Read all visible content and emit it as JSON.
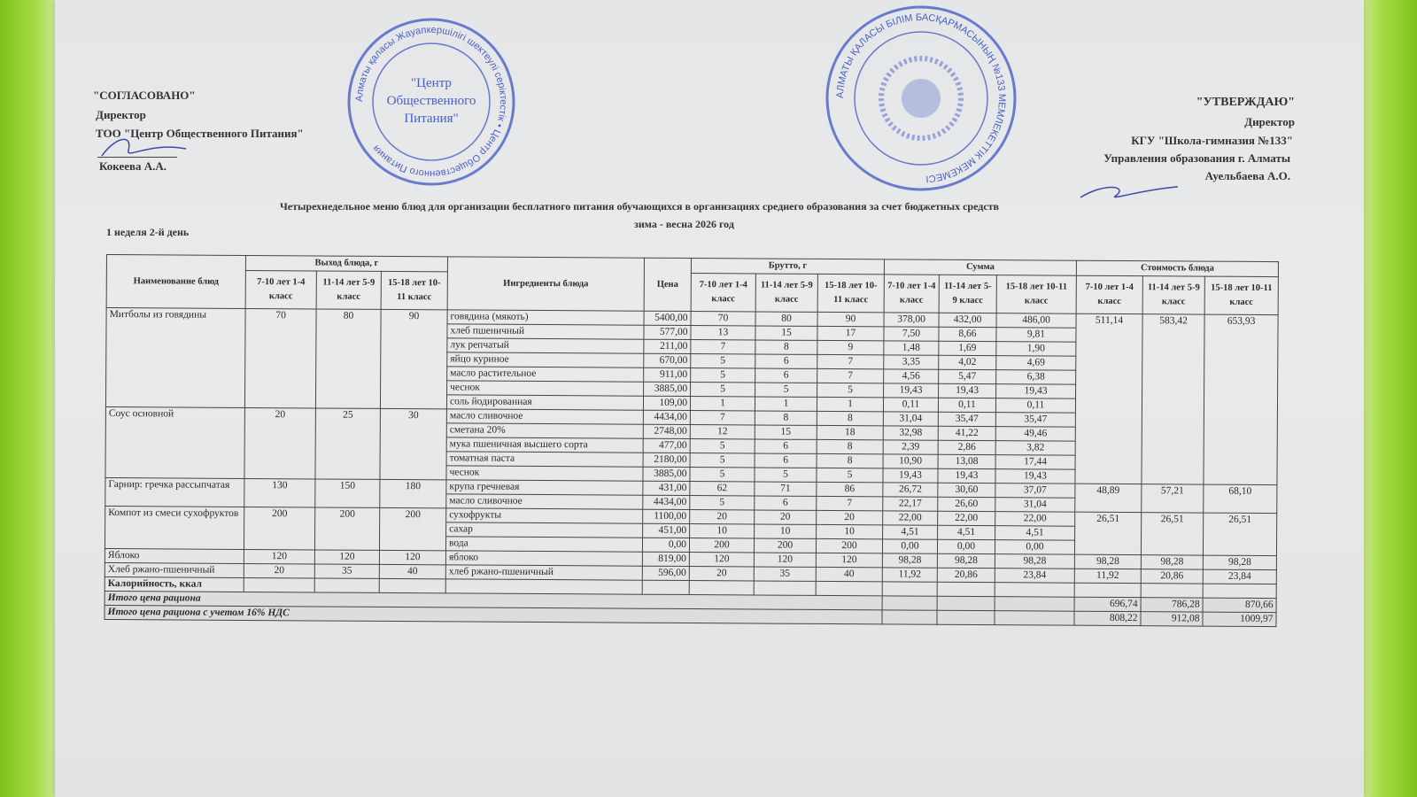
{
  "approval_left": {
    "title": "\"СОГЛАСОВАНО\"",
    "position": "Директор",
    "org": "ТОО \"Центр Общественного Питания\"",
    "name": "Кокеева А.А.",
    "stamp_text": "Алматы қаласы Жауапкершілігі шектеулі серіктестік • Центр Общественного Питания",
    "stamp_center": [
      "\"Центр",
      "Общественного",
      "Питания\""
    ]
  },
  "approval_right": {
    "title": "\"УТВЕРЖДАЮ\"",
    "position": "Директор",
    "org": "КГУ \"Школа-гимназия №133\"",
    "dept": "Управления образования г. Алматы",
    "name": "Ауельбаева А.О.",
    "stamp_text": "АЛМАТЫ ҚАЛАСЫ БІЛІМ БАСҚАРМАСЫНЫҢ №133 МЕМЛЕКЕТТІК МЕКЕМЕСІ"
  },
  "document": {
    "title": "Четырехнедельное меню блюд для организации бесплатного питания обучающихся в организациях среднего образования за счет бюджетных средств",
    "season": "зима - весна 2026 год",
    "day": "1 неделя 2-й день"
  },
  "colors": {
    "stamp": "#4a5fc4",
    "paper": "#e6e7e8",
    "frame": "#8fcf2a"
  },
  "table": {
    "headers": {
      "dish": "Наименование блюд",
      "yield": "Выход блюда, г",
      "ingredients": "Ингредиенты блюда",
      "price": "Цена",
      "brutto": "Брутто, г",
      "sum": "Сумма",
      "cost": "Стоимость блюда",
      "yield_groups": [
        "7-10 лет 1-4 класс",
        "11-14 лет 5-9 класс",
        "15-18 лет 10-11 класс"
      ],
      "groups": [
        "7-10 лет 1-4 класс",
        "11-14 лет 5-9 класс",
        "15-18 лет 10-11 класс"
      ]
    },
    "dishes": [
      {
        "name": "Митболы из говядины",
        "yield": [
          "70",
          "80",
          "90"
        ],
        "cost": [
          "511,14",
          "583,42",
          "653,93"
        ],
        "ingredients": [
          {
            "name": "говядина (мякоть)",
            "price": "5400,00",
            "brutto": [
              "70",
              "80",
              "90"
            ],
            "sum": [
              "378,00",
              "432,00",
              "486,00"
            ]
          },
          {
            "name": "хлеб пшеничный",
            "price": "577,00",
            "brutto": [
              "13",
              "15",
              "17"
            ],
            "sum": [
              "7,50",
              "8,66",
              "9,81"
            ]
          },
          {
            "name": "лук репчатый",
            "price": "211,00",
            "brutto": [
              "7",
              "8",
              "9"
            ],
            "sum": [
              "1,48",
              "1,69",
              "1,90"
            ]
          },
          {
            "name": "яйцо куриное",
            "price": "670,00",
            "brutto": [
              "5",
              "6",
              "7"
            ],
            "sum": [
              "3,35",
              "4,02",
              "4,69"
            ]
          },
          {
            "name": "масло растительное",
            "price": "911,00",
            "brutto": [
              "5",
              "6",
              "7"
            ],
            "sum": [
              "4,56",
              "5,47",
              "6,38"
            ]
          },
          {
            "name": "чеснок",
            "price": "3885,00",
            "brutto": [
              "5",
              "5",
              "5"
            ],
            "sum": [
              "19,43",
              "19,43",
              "19,43"
            ]
          },
          {
            "name": "соль йодированная",
            "price": "109,00",
            "brutto": [
              "1",
              "1",
              "1"
            ],
            "sum": [
              "0,11",
              "0,11",
              "0,11"
            ]
          }
        ]
      },
      {
        "name": "Соус основной",
        "yield": [
          "20",
          "25",
          "30"
        ],
        "cost": null,
        "ingredients": [
          {
            "name": "масло сливочное",
            "price": "4434,00",
            "brutto": [
              "7",
              "8",
              "8"
            ],
            "sum": [
              "31,04",
              "35,47",
              "35,47"
            ]
          },
          {
            "name": "сметана 20%",
            "price": "2748,00",
            "brutto": [
              "12",
              "15",
              "18"
            ],
            "sum": [
              "32,98",
              "41,22",
              "49,46"
            ]
          },
          {
            "name": "мука пшеничная высшего сорта",
            "price": "477,00",
            "brutto": [
              "5",
              "6",
              "8"
            ],
            "sum": [
              "2,39",
              "2,86",
              "3,82"
            ]
          },
          {
            "name": "томатная паста",
            "price": "2180,00",
            "brutto": [
              "5",
              "6",
              "8"
            ],
            "sum": [
              "10,90",
              "13,08",
              "17,44"
            ]
          },
          {
            "name": "чеснок",
            "price": "3885,00",
            "brutto": [
              "5",
              "5",
              "5"
            ],
            "sum": [
              "19,43",
              "19,43",
              "19,43"
            ]
          }
        ]
      },
      {
        "name": "Гарнир: гречка рассыпчатая",
        "yield": [
          "130",
          "150",
          "180"
        ],
        "cost": [
          "48,89",
          "57,21",
          "68,10"
        ],
        "ingredients": [
          {
            "name": "крупа гречневая",
            "price": "431,00",
            "brutto": [
              "62",
              "71",
              "86"
            ],
            "sum": [
              "26,72",
              "30,60",
              "37,07"
            ]
          },
          {
            "name": "масло сливочное",
            "price": "4434,00",
            "brutto": [
              "5",
              "6",
              "7"
            ],
            "sum": [
              "22,17",
              "26,60",
              "31,04"
            ]
          }
        ]
      },
      {
        "name": "Компот из смеси сухофруктов",
        "yield": [
          "200",
          "200",
          "200"
        ],
        "cost": [
          "26,51",
          "26,51",
          "26,51"
        ],
        "ingredients": [
          {
            "name": "сухофрукты",
            "price": "1100,00",
            "brutto": [
              "20",
              "20",
              "20"
            ],
            "sum": [
              "22,00",
              "22,00",
              "22,00"
            ]
          },
          {
            "name": "сахар",
            "price": "451,00",
            "brutto": [
              "10",
              "10",
              "10"
            ],
            "sum": [
              "4,51",
              "4,51",
              "4,51"
            ]
          },
          {
            "name": "вода",
            "price": "0,00",
            "brutto": [
              "200",
              "200",
              "200"
            ],
            "sum": [
              "0,00",
              "0,00",
              "0,00"
            ]
          }
        ]
      },
      {
        "name": "Яблоко",
        "yield": [
          "120",
          "120",
          "120"
        ],
        "cost": [
          "98,28",
          "98,28",
          "98,28"
        ],
        "ingredients": [
          {
            "name": "яблоко",
            "price": "819,00",
            "brutto": [
              "120",
              "120",
              "120"
            ],
            "sum": [
              "98,28",
              "98,28",
              "98,28"
            ]
          }
        ]
      },
      {
        "name": "Хлеб ржано-пшеничный",
        "yield": [
          "20",
          "35",
          "40"
        ],
        "cost": [
          "11,92",
          "20,86",
          "23,84"
        ],
        "ingredients": [
          {
            "name": "хлеб ржано-пшеничный",
            "price": "596,00",
            "brutto": [
              "20",
              "35",
              "40"
            ],
            "sum": [
              "11,92",
              "20,86",
              "23,84"
            ]
          }
        ]
      }
    ],
    "calories_label": "Калорийность, ккал",
    "totals": [
      {
        "label": "Итого цена рациона",
        "values": [
          "696,74",
          "786,28",
          "870,66"
        ]
      },
      {
        "label": "Итого цена рациона с учетом 16% НДС",
        "values": [
          "808,22",
          "912,08",
          "1009,97"
        ]
      }
    ]
  }
}
